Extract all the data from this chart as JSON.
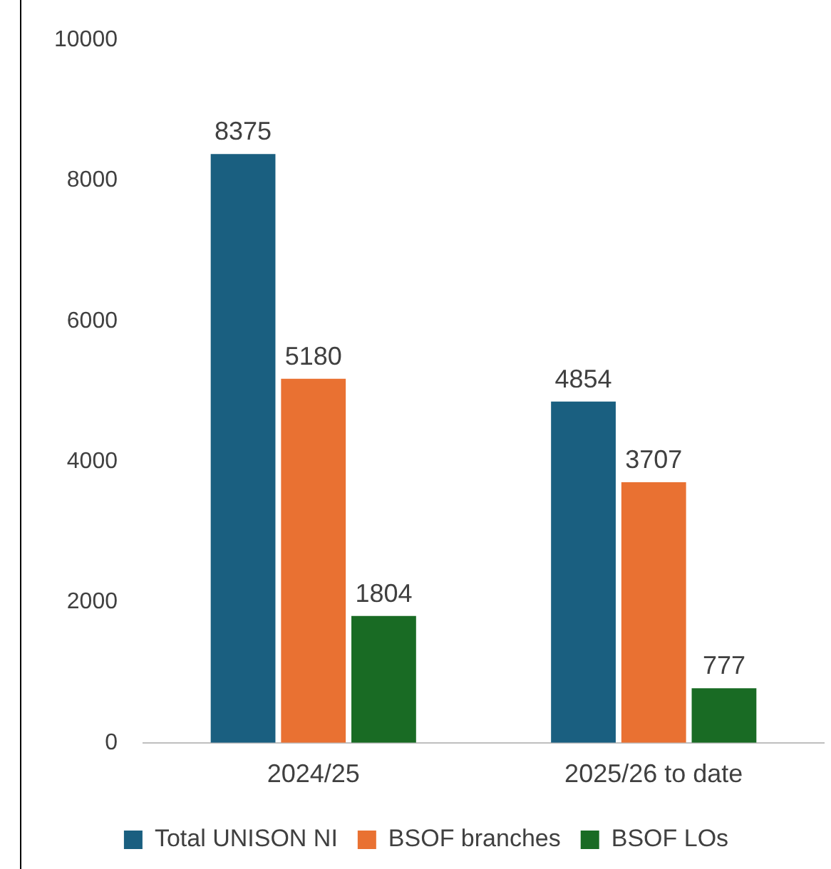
{
  "chart_data": {
    "type": "bar",
    "categories": [
      "2024/25",
      "2025/26 to date"
    ],
    "series": [
      {
        "name": "Total UNISON NI",
        "color": "#1a5f80",
        "values": [
          8375,
          4854
        ]
      },
      {
        "name": "BSOF branches",
        "color": "#e97132",
        "values": [
          5180,
          3707
        ]
      },
      {
        "name": "BSOF LOs",
        "color": "#196b24",
        "values": [
          1804,
          777
        ]
      }
    ],
    "ylim": [
      0,
      10000
    ],
    "yticks": [
      0,
      2000,
      4000,
      6000,
      8000,
      10000
    ],
    "grid": false,
    "legend": "bottom",
    "data_labels": true
  }
}
